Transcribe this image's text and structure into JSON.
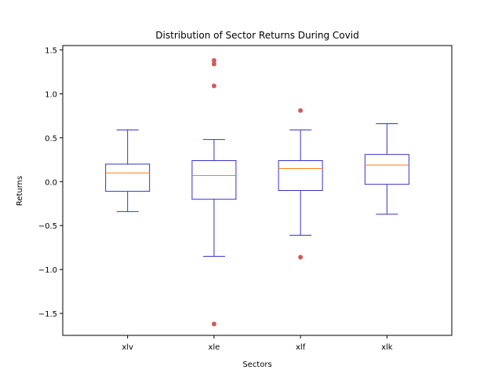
{
  "chart_data": {
    "type": "box",
    "title": "Distribution of Sector Returns During Covid",
    "xlabel": "Sectors",
    "ylabel": "Returns",
    "ylim": [
      -1.75,
      1.55
    ],
    "yticks": [
      1.5,
      1.0,
      0.5,
      0.0,
      -0.5,
      -1.0,
      -1.5
    ],
    "ytick_labels": [
      "1.5",
      "1.0",
      "0.5",
      "0.0",
      "−0.5",
      "−1.0",
      "−1.5"
    ],
    "grid": false,
    "colors": {
      "box": "#3333cc",
      "median": "#ff7f0e",
      "outlier": "#cd5c5c"
    },
    "series": [
      {
        "category": "xlv",
        "whisker_low": -0.34,
        "q1": -0.11,
        "median": 0.1,
        "q3": 0.2,
        "whisker_high": 0.59,
        "outliers": []
      },
      {
        "category": "xle",
        "whisker_low": -0.85,
        "q1": -0.2,
        "median": 0.07,
        "q3": 0.24,
        "whisker_high": 0.48,
        "outliers": [
          1.38,
          1.34,
          1.09,
          -1.62
        ]
      },
      {
        "category": "xlf",
        "whisker_low": -0.61,
        "q1": -0.1,
        "median": 0.15,
        "q3": 0.24,
        "whisker_high": 0.59,
        "outliers": [
          0.81,
          -0.86
        ]
      },
      {
        "category": "xlk",
        "whisker_low": -0.37,
        "q1": -0.03,
        "median": 0.19,
        "q3": 0.31,
        "whisker_high": 0.66,
        "outliers": []
      }
    ]
  }
}
